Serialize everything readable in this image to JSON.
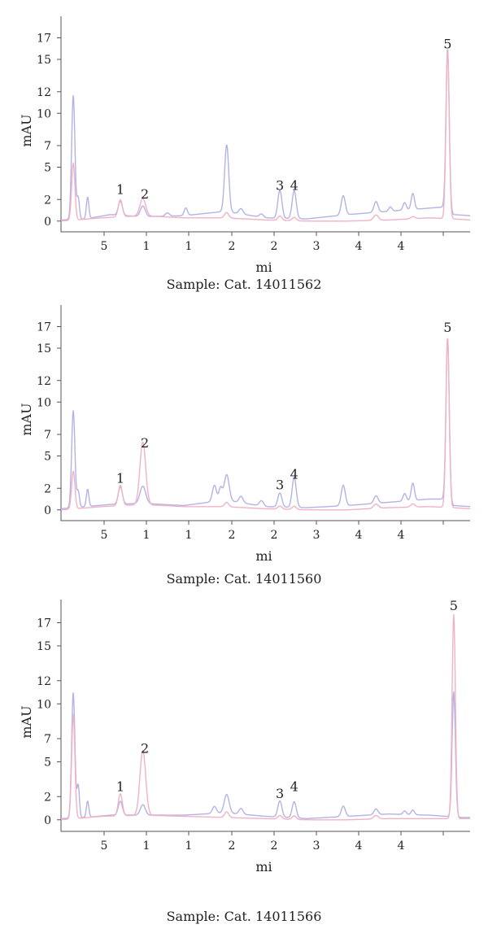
{
  "chart_data": [
    {
      "type": "line",
      "caption": "Sample: Cat. 14011562",
      "xlabel": "mi",
      "ylabel": "mAU",
      "xlim": [
        0,
        10
      ],
      "ylim": [
        -1,
        19
      ],
      "x_tick_labels": [
        "5",
        "1",
        "1",
        "2",
        "2",
        "3",
        "4",
        "4"
      ],
      "y_tick_labels": [
        "0",
        "2",
        "5",
        "7",
        "10",
        "12",
        "15",
        "17"
      ],
      "y_tick_values": [
        0,
        2,
        5,
        7,
        10,
        12,
        15,
        17
      ],
      "peaks": [
        {
          "label": "1",
          "x": 1.45,
          "y": 2.2
        },
        {
          "label": "2",
          "x": 2.05,
          "y": 1.8
        },
        {
          "label": "3",
          "x": 5.35,
          "y": 2.6
        },
        {
          "label": "4",
          "x": 5.7,
          "y": 2.6
        },
        {
          "label": "5",
          "x": 9.45,
          "y": 15.7
        }
      ],
      "series": [
        {
          "color": "#b3b3e6",
          "baseline": [
            [
              0,
              0.1
            ],
            [
              0.6,
              0.2
            ],
            [
              1.2,
              0.6
            ],
            [
              2.0,
              0.4
            ],
            [
              3.0,
              0.5
            ],
            [
              4.0,
              0.9
            ],
            [
              5.0,
              0.3
            ],
            [
              6.0,
              0.2
            ],
            [
              7.0,
              0.6
            ],
            [
              8.0,
              0.9
            ],
            [
              9.0,
              1.2
            ],
            [
              9.35,
              1.3
            ],
            [
              9.6,
              0.6
            ],
            [
              10,
              0.5
            ]
          ],
          "peaks": [
            [
              0.3,
              11.5,
              0.04
            ],
            [
              0.42,
              2.0,
              0.03
            ],
            [
              0.65,
              2.0,
              0.03
            ],
            [
              1.45,
              1.3,
              0.05
            ],
            [
              2.0,
              1.0,
              0.06
            ],
            [
              2.6,
              0.3,
              0.05
            ],
            [
              3.05,
              0.7,
              0.04
            ],
            [
              4.05,
              6.2,
              0.05
            ],
            [
              4.4,
              0.5,
              0.05
            ],
            [
              4.9,
              0.3,
              0.05
            ],
            [
              5.35,
              2.6,
              0.05
            ],
            [
              5.7,
              2.6,
              0.05
            ],
            [
              6.9,
              1.8,
              0.05
            ],
            [
              7.7,
              1.0,
              0.05
            ],
            [
              8.05,
              0.4,
              0.04
            ],
            [
              8.4,
              0.7,
              0.04
            ],
            [
              8.6,
              1.5,
              0.04
            ],
            [
              9.45,
              15.0,
              0.04
            ]
          ]
        },
        {
          "color": "#f0b3c6",
          "baseline": [
            [
              0,
              0.0
            ],
            [
              1.0,
              0.3
            ],
            [
              2.0,
              0.5
            ],
            [
              3.0,
              0.3
            ],
            [
              4.0,
              0.3
            ],
            [
              5.0,
              0.1
            ],
            [
              6.0,
              0.0
            ],
            [
              7.0,
              0.0
            ],
            [
              8.0,
              0.1
            ],
            [
              9.0,
              0.3
            ],
            [
              9.6,
              0.2
            ],
            [
              10,
              0.1
            ]
          ],
          "peaks": [
            [
              0.3,
              5.3,
              0.04
            ],
            [
              1.45,
              1.6,
              0.05
            ],
            [
              2.0,
              1.6,
              0.07
            ],
            [
              4.05,
              0.5,
              0.05
            ],
            [
              5.35,
              0.4,
              0.05
            ],
            [
              5.7,
              0.3,
              0.05
            ],
            [
              7.7,
              0.5,
              0.06
            ],
            [
              8.6,
              0.2,
              0.05
            ],
            [
              9.45,
              15.6,
              0.04
            ]
          ]
        }
      ]
    },
    {
      "type": "line",
      "caption": "Sample: Cat. 14011560",
      "xlabel": "mi",
      "ylabel": "mAU",
      "xlim": [
        0,
        10
      ],
      "ylim": [
        -1,
        19
      ],
      "x_tick_labels": [
        "5",
        "1",
        "1",
        "2",
        "2",
        "3",
        "4",
        "4"
      ],
      "y_tick_labels": [
        "0",
        "2",
        "5",
        "7",
        "10",
        "12",
        "15",
        "17"
      ],
      "y_tick_values": [
        0,
        2,
        5,
        7,
        10,
        12,
        15,
        17
      ],
      "peaks": [
        {
          "label": "1",
          "x": 1.45,
          "y": 2.2
        },
        {
          "label": "2",
          "x": 2.05,
          "y": 5.5
        },
        {
          "label": "3",
          "x": 5.35,
          "y": 1.6
        },
        {
          "label": "4",
          "x": 5.7,
          "y": 2.6
        },
        {
          "label": "5",
          "x": 9.45,
          "y": 16.2
        }
      ],
      "series": [
        {
          "color": "#b3b3e6",
          "baseline": [
            [
              0,
              0.1
            ],
            [
              0.6,
              0.3
            ],
            [
              1.2,
              0.5
            ],
            [
              2.0,
              0.6
            ],
            [
              3.0,
              0.4
            ],
            [
              4.0,
              0.9
            ],
            [
              5.0,
              0.3
            ],
            [
              6.0,
              0.2
            ],
            [
              7.0,
              0.4
            ],
            [
              8.0,
              0.7
            ],
            [
              9.0,
              1.0
            ],
            [
              9.35,
              1.0
            ],
            [
              9.6,
              0.4
            ],
            [
              10,
              0.3
            ]
          ],
          "peaks": [
            [
              0.3,
              9.0,
              0.04
            ],
            [
              0.42,
              1.5,
              0.03
            ],
            [
              0.65,
              1.6,
              0.03
            ],
            [
              1.45,
              1.6,
              0.05
            ],
            [
              2.0,
              1.6,
              0.07
            ],
            [
              3.75,
              1.5,
              0.05
            ],
            [
              3.9,
              1.2,
              0.04
            ],
            [
              4.05,
              2.4,
              0.06
            ],
            [
              4.4,
              0.6,
              0.05
            ],
            [
              4.9,
              0.5,
              0.05
            ],
            [
              5.35,
              1.3,
              0.05
            ],
            [
              5.7,
              2.8,
              0.05
            ],
            [
              6.9,
              1.9,
              0.05
            ],
            [
              7.7,
              0.7,
              0.05
            ],
            [
              8.4,
              0.7,
              0.04
            ],
            [
              8.6,
              1.6,
              0.04
            ],
            [
              9.45,
              15.2,
              0.04
            ]
          ]
        },
        {
          "color": "#f0b3c6",
          "baseline": [
            [
              0,
              0.0
            ],
            [
              1.0,
              0.3
            ],
            [
              2.0,
              0.5
            ],
            [
              3.0,
              0.3
            ],
            [
              4.0,
              0.3
            ],
            [
              5.0,
              0.1
            ],
            [
              6.0,
              0.0
            ],
            [
              7.0,
              0.0
            ],
            [
              8.0,
              0.2
            ],
            [
              9.0,
              0.3
            ],
            [
              9.6,
              0.2
            ],
            [
              10,
              0.1
            ]
          ],
          "peaks": [
            [
              0.3,
              3.5,
              0.04
            ],
            [
              1.45,
              1.9,
              0.05
            ],
            [
              2.0,
              5.8,
              0.07
            ],
            [
              4.05,
              0.4,
              0.05
            ],
            [
              5.35,
              0.3,
              0.05
            ],
            [
              5.7,
              0.3,
              0.05
            ],
            [
              7.7,
              0.4,
              0.06
            ],
            [
              8.6,
              0.3,
              0.05
            ],
            [
              9.45,
              15.8,
              0.04
            ]
          ]
        }
      ]
    },
    {
      "type": "line",
      "caption": "Sample: Cat. 14011566",
      "xlabel": "mi",
      "ylabel": "mAU",
      "xlim": [
        0,
        10
      ],
      "ylim": [
        -1,
        19
      ],
      "x_tick_labels": [
        "5",
        "1",
        "1",
        "2",
        "2",
        "3",
        "4",
        "4"
      ],
      "y_tick_labels": [
        "0",
        "2",
        "5",
        "7",
        "10",
        "12",
        "15",
        "17"
      ],
      "y_tick_values": [
        0,
        2,
        5,
        7,
        10,
        12,
        15,
        17
      ],
      "peaks": [
        {
          "label": "1",
          "x": 1.45,
          "y": 2.2
        },
        {
          "label": "2",
          "x": 2.05,
          "y": 5.5
        },
        {
          "label": "3",
          "x": 5.35,
          "y": 1.6
        },
        {
          "label": "4",
          "x": 5.7,
          "y": 2.2
        },
        {
          "label": "5",
          "x": 9.6,
          "y": 17.8
        }
      ],
      "series": [
        {
          "color": "#b3b3e6",
          "baseline": [
            [
              0,
              0.1
            ],
            [
              0.6,
              0.2
            ],
            [
              1.2,
              0.4
            ],
            [
              2.0,
              0.4
            ],
            [
              3.0,
              0.4
            ],
            [
              4.0,
              0.6
            ],
            [
              5.0,
              0.3
            ],
            [
              6.0,
              0.1
            ],
            [
              7.0,
              0.3
            ],
            [
              8.0,
              0.5
            ],
            [
              9.0,
              0.4
            ],
            [
              9.4,
              0.3
            ],
            [
              9.8,
              0.2
            ],
            [
              10,
              0.2
            ]
          ],
          "peaks": [
            [
              0.3,
              10.8,
              0.04
            ],
            [
              0.42,
              2.8,
              0.03
            ],
            [
              0.65,
              1.4,
              0.03
            ],
            [
              1.45,
              1.2,
              0.05
            ],
            [
              2.0,
              0.9,
              0.06
            ],
            [
              3.75,
              0.6,
              0.05
            ],
            [
              4.05,
              1.6,
              0.06
            ],
            [
              4.4,
              0.5,
              0.05
            ],
            [
              5.35,
              1.4,
              0.05
            ],
            [
              5.7,
              1.4,
              0.05
            ],
            [
              6.9,
              0.9,
              0.05
            ],
            [
              7.7,
              0.5,
              0.05
            ],
            [
              8.4,
              0.3,
              0.04
            ],
            [
              8.6,
              0.4,
              0.04
            ],
            [
              9.6,
              10.8,
              0.04
            ]
          ]
        },
        {
          "color": "#f0b3c6",
          "baseline": [
            [
              0,
              0.0
            ],
            [
              1.0,
              0.3
            ],
            [
              2.0,
              0.4
            ],
            [
              3.0,
              0.3
            ],
            [
              4.0,
              0.2
            ],
            [
              5.0,
              0.1
            ],
            [
              6.0,
              0.0
            ],
            [
              7.0,
              0.0
            ],
            [
              8.0,
              0.1
            ],
            [
              9.0,
              0.1
            ],
            [
              9.8,
              0.1
            ],
            [
              10,
              0.1
            ]
          ],
          "peaks": [
            [
              0.3,
              9.0,
              0.04
            ],
            [
              1.45,
              1.9,
              0.05
            ],
            [
              2.0,
              5.6,
              0.07
            ],
            [
              4.05,
              0.5,
              0.05
            ],
            [
              5.35,
              0.3,
              0.05
            ],
            [
              5.7,
              0.3,
              0.05
            ],
            [
              7.7,
              0.3,
              0.06
            ],
            [
              9.6,
              17.6,
              0.04
            ]
          ]
        }
      ]
    }
  ]
}
